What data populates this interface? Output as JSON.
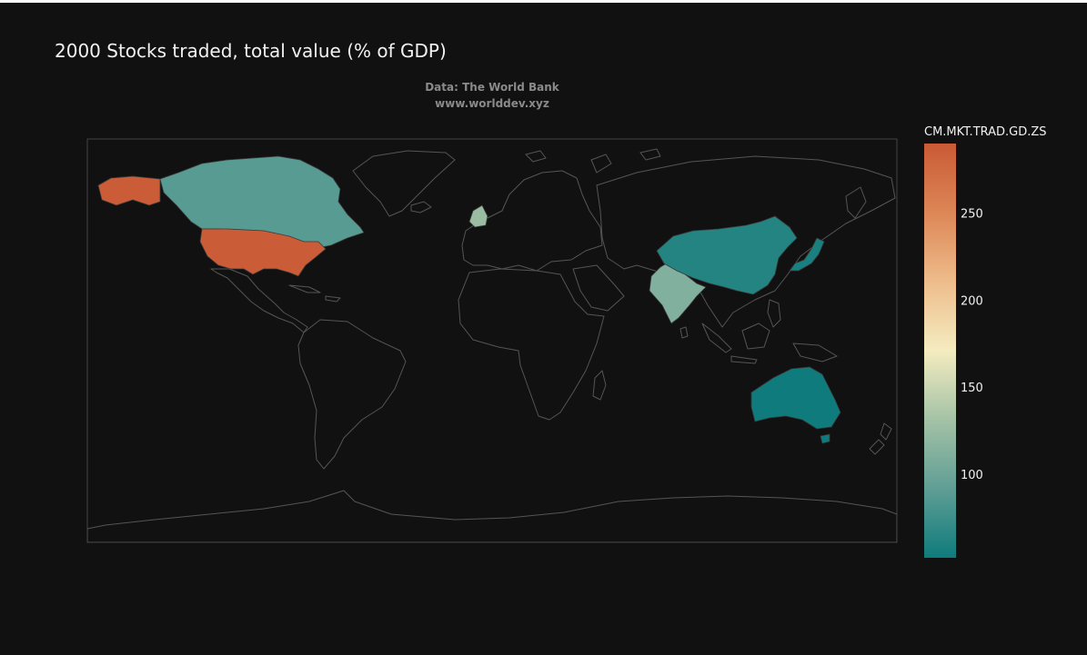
{
  "chart_data": {
    "type": "choropleth",
    "title": "2000 Stocks traded, total value (% of GDP)",
    "source_lines": [
      "Data: The World Bank",
      "www.worlddev.xyz"
    ],
    "colorbar": {
      "title": "CM.MKT.TRAD.GD.ZS",
      "range": [
        52,
        290
      ],
      "ticks": [
        100,
        150,
        200,
        250
      ],
      "colorscale": [
        "#0f7b7c",
        "#5f9e95",
        "#a4c2a6",
        "#f4ecc0",
        "#eebc8b",
        "#dd8656",
        "#c95a35"
      ]
    },
    "projection": "equirectangular",
    "countries": [
      {
        "name": "United States",
        "value": 288
      },
      {
        "name": "Canada",
        "value": 88
      },
      {
        "name": "United Kingdom",
        "value": 125
      },
      {
        "name": "India",
        "value": 112
      },
      {
        "name": "China",
        "value": 62
      },
      {
        "name": "Japan",
        "value": 57
      },
      {
        "name": "Australia",
        "value": 52
      }
    ]
  }
}
